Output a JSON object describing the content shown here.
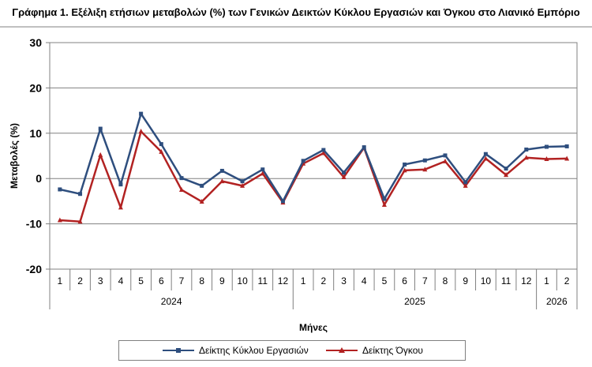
{
  "chart_data": {
    "type": "line",
    "title": "Γράφημα 1. Εξέλιξη ετήσιων μεταβολών (%) των Γενικών Δεικτών Κύκλου Εργασιών και Όγκου στο Λιανικό Εμπόριο",
    "xlabel": "Μήνες",
    "ylabel": "Μεταβολές  (%)",
    "ylim": [
      -20,
      30
    ],
    "yticks": [
      -20,
      -10,
      0,
      10,
      20,
      30
    ],
    "grid": true,
    "legend_position": "bottom",
    "categories": [
      "1",
      "2",
      "3",
      "4",
      "5",
      "6",
      "7",
      "8",
      "9",
      "10",
      "11",
      "12",
      "1",
      "2",
      "3",
      "4",
      "5",
      "6",
      "7",
      "8",
      "9",
      "10",
      "11",
      "12",
      "1",
      "2"
    ],
    "years": [
      {
        "label": "2024",
        "count": 12
      },
      {
        "label": "2025",
        "count": 12
      },
      {
        "label": "2026",
        "count": 2
      }
    ],
    "series": [
      {
        "name": "Δείκτης Κύκλου Εργασιών",
        "color": "#2e4e7e",
        "marker": "square",
        "values": [
          -2.4,
          -3.4,
          11.0,
          -1.3,
          14.3,
          7.6,
          0.1,
          -1.6,
          1.7,
          -0.6,
          2.0,
          -5.0,
          3.9,
          6.3,
          1.3,
          6.9,
          -4.5,
          3.1,
          4.0,
          5.1,
          -0.8,
          5.4,
          2.2,
          6.4,
          7.0,
          7.1
        ]
      },
      {
        "name": "Δείκτης Όγκου",
        "color": "#b22222",
        "marker": "triangle",
        "values": [
          -9.2,
          -9.5,
          5.2,
          -6.4,
          10.4,
          5.9,
          -2.5,
          -5.1,
          -0.6,
          -1.6,
          1.1,
          -5.3,
          3.3,
          5.6,
          0.3,
          6.8,
          -5.8,
          1.8,
          2.0,
          3.8,
          -1.6,
          4.4,
          0.8,
          4.6,
          4.3,
          4.4
        ]
      }
    ]
  }
}
